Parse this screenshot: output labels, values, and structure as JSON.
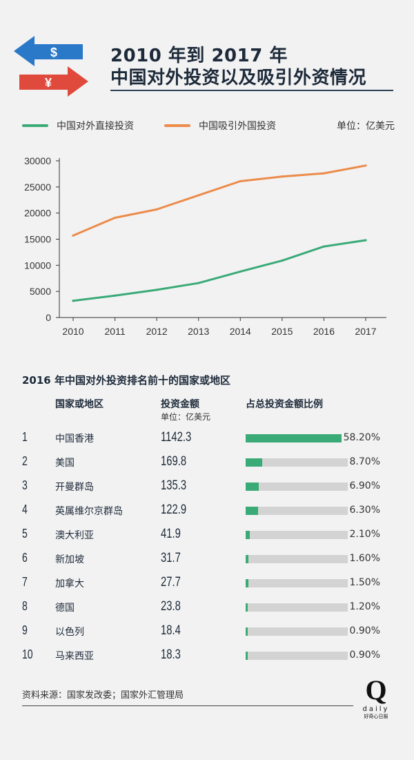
{
  "header": {
    "title_line1": "2010 年到 2017 年",
    "title_line2": "中国对外投资以及吸引外资情况",
    "arrow_top_symbol": "$",
    "arrow_bottom_symbol": "¥",
    "colors": {
      "blue": "#2a78c8",
      "red": "#e04a3c",
      "navy": "#1d2a3a"
    }
  },
  "chart_data": {
    "type": "line",
    "categories": [
      "2010",
      "2011",
      "2012",
      "2013",
      "2014",
      "2015",
      "2016",
      "2017"
    ],
    "series": [
      {
        "name": "中国对外直接投资",
        "color": "#3aaa77",
        "values": [
          3200,
          4200,
          5300,
          6600,
          8800,
          10900,
          13600,
          14800
        ]
      },
      {
        "name": "中国吸引外国投资",
        "color": "#ec8b4a",
        "values": [
          15700,
          19100,
          20700,
          23400,
          26100,
          27000,
          27600,
          29100
        ]
      }
    ],
    "ylim": [
      0,
      30000
    ],
    "yticks": [
      0,
      5000,
      10000,
      15000,
      20000,
      25000,
      30000
    ],
    "grid": false,
    "legend_position": "top",
    "unit": "单位：亿美元"
  },
  "table": {
    "title": "2016 年中国对外投资排名前十的国家或地区",
    "headers": {
      "region": "国家或地区",
      "amount": "投资金额",
      "amount_unit": "单位：亿美元",
      "share": "占总投资金额比例"
    },
    "bar_color": "#3aaa77",
    "rows": [
      {
        "rank": "1",
        "region": "中国香港",
        "amount": "1142.3",
        "share": "58.20%",
        "share_value": 0.582
      },
      {
        "rank": "2",
        "region": "美国",
        "amount": "169.8",
        "share": "8.70%",
        "share_value": 0.087
      },
      {
        "rank": "3",
        "region": "开曼群岛",
        "amount": "135.3",
        "share": "6.90%",
        "share_value": 0.069
      },
      {
        "rank": "4",
        "region": "英属维尔京群岛",
        "amount": "122.9",
        "share": "6.30%",
        "share_value": 0.063
      },
      {
        "rank": "5",
        "region": "澳大利亚",
        "amount": "41.9",
        "share": "2.10%",
        "share_value": 0.021
      },
      {
        "rank": "6",
        "region": "新加坡",
        "amount": "31.7",
        "share": "1.60%",
        "share_value": 0.016
      },
      {
        "rank": "7",
        "region": "加拿大",
        "amount": "27.7",
        "share": "1.50%",
        "share_value": 0.015
      },
      {
        "rank": "8",
        "region": "德国",
        "amount": "23.8",
        "share": "1.20%",
        "share_value": 0.012
      },
      {
        "rank": "9",
        "region": "以色列",
        "amount": "18.4",
        "share": "0.90%",
        "share_value": 0.009
      },
      {
        "rank": "10",
        "region": "马来西亚",
        "amount": "18.3",
        "share": "0.90%",
        "share_value": 0.009
      }
    ]
  },
  "footer": {
    "source": "资料来源：国家发改委；国家外汇管理局",
    "logo_letter": "Q",
    "logo_word": "daily",
    "logo_cn": "好奇心日报"
  }
}
